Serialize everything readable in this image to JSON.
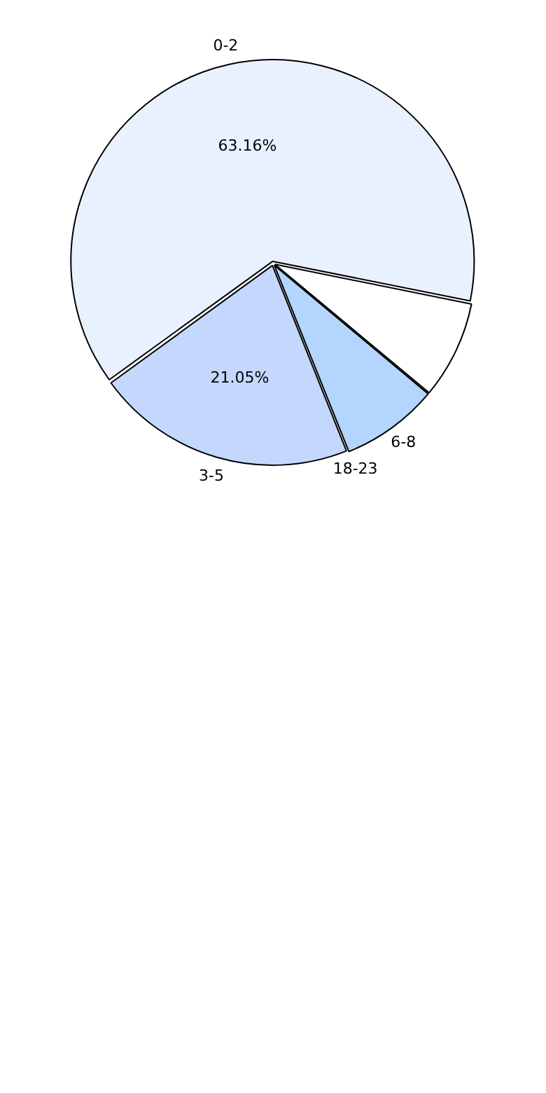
{
  "chart_data": {
    "type": "pie",
    "categories": [
      "0-2",
      null,
      "6-8",
      "18-23",
      "3-5"
    ],
    "values": [
      63.16,
      7.9,
      7.89,
      0,
      21.05
    ],
    "colors": [
      "#eaf1fe",
      "#ffffff",
      "#b3d5fe",
      "#b8d0fe",
      "#c4d8fe"
    ],
    "value_labels": [
      "63.16%",
      null,
      null,
      null,
      "21.05%"
    ],
    "legend": false
  }
}
